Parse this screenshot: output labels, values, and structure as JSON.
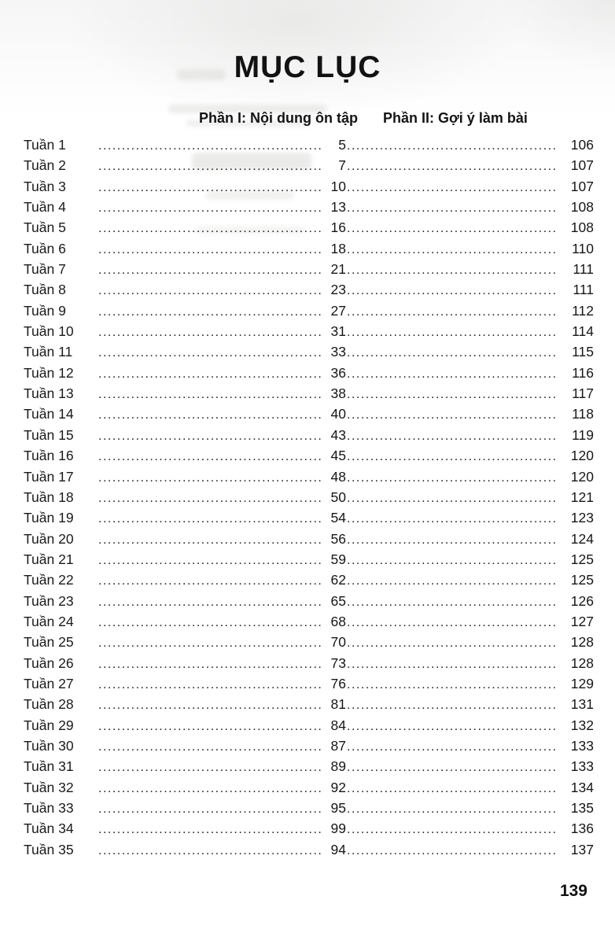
{
  "page": {
    "title": "MỤC LỤC",
    "page_number": "139"
  },
  "headers": {
    "part1": "Phần I: Nội dung ôn tập",
    "part2": "Phần II: Gợi ý làm bài"
  },
  "toc": {
    "rows": [
      {
        "label": "Tuần 1",
        "part1": "5",
        "part2": "106"
      },
      {
        "label": "Tuần 2",
        "part1": "7",
        "part2": "107"
      },
      {
        "label": "Tuần 3",
        "part1": "10",
        "part2": "107"
      },
      {
        "label": "Tuần 4",
        "part1": "13",
        "part2": "108"
      },
      {
        "label": "Tuần 5",
        "part1": "16",
        "part2": "108"
      },
      {
        "label": "Tuần 6",
        "part1": "18",
        "part2": "110"
      },
      {
        "label": "Tuần 7",
        "part1": "21",
        "part2": "111"
      },
      {
        "label": "Tuần 8",
        "part1": "23",
        "part2": "111"
      },
      {
        "label": "Tuần 9",
        "part1": "27",
        "part2": "112"
      },
      {
        "label": "Tuần 10",
        "part1": "31",
        "part2": "114"
      },
      {
        "label": "Tuần 11",
        "part1": "33",
        "part2": "115"
      },
      {
        "label": "Tuần 12",
        "part1": "36",
        "part2": "116"
      },
      {
        "label": "Tuần 13",
        "part1": "38",
        "part2": "117"
      },
      {
        "label": "Tuần 14",
        "part1": "40",
        "part2": "118"
      },
      {
        "label": "Tuần 15",
        "part1": "43",
        "part2": "119"
      },
      {
        "label": "Tuần 16",
        "part1": "45",
        "part2": "120"
      },
      {
        "label": "Tuần 17",
        "part1": "48",
        "part2": "120"
      },
      {
        "label": "Tuần 18",
        "part1": "50",
        "part2": "121"
      },
      {
        "label": "Tuần 19",
        "part1": "54",
        "part2": "123"
      },
      {
        "label": "Tuần 20",
        "part1": "56",
        "part2": "124"
      },
      {
        "label": "Tuần 21",
        "part1": "59",
        "part2": "125"
      },
      {
        "label": "Tuần 22",
        "part1": "62",
        "part2": "125"
      },
      {
        "label": "Tuần 23",
        "part1": "65",
        "part2": "126"
      },
      {
        "label": "Tuần 24",
        "part1": "68",
        "part2": "127"
      },
      {
        "label": "Tuần 25",
        "part1": "70",
        "part2": "128"
      },
      {
        "label": "Tuần 26",
        "part1": "73",
        "part2": "128"
      },
      {
        "label": "Tuần 27",
        "part1": "76",
        "part2": "129"
      },
      {
        "label": "Tuần 28",
        "part1": "81",
        "part2": "131"
      },
      {
        "label": "Tuần 29",
        "part1": "84",
        "part2": "132"
      },
      {
        "label": "Tuần 30",
        "part1": "87",
        "part2": "133"
      },
      {
        "label": "Tuần 31",
        "part1": "89",
        "part2": "133"
      },
      {
        "label": "Tuần 32",
        "part1": "92",
        "part2": "134"
      },
      {
        "label": "Tuần 33",
        "part1": "95",
        "part2": "135"
      },
      {
        "label": "Tuần 34",
        "part1": "99",
        "part2": "136"
      },
      {
        "label": "Tuần 35",
        "part1": "94",
        "part2": "137"
      }
    ]
  }
}
